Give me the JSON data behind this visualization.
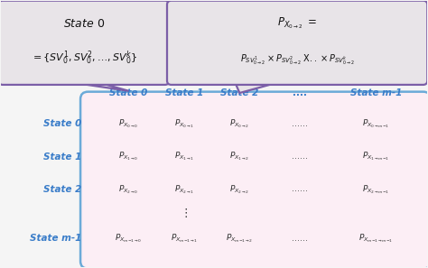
{
  "bg_color": "#f5f5f5",
  "matrix_bg": "#fceef5",
  "matrix_border": "#6baad8",
  "bubble_bg": "#e8e4e8",
  "bubble_border": "#7b5ea7",
  "col_header_color": "#3a7dc9",
  "row_header_color": "#3a7dc9",
  "matrix_text_color": "#333333",
  "dots_color": "#333333",
  "figsize": [
    4.74,
    2.97
  ],
  "dpi": 100,
  "col_headers": [
    "State 0",
    "State 1",
    "State 2",
    "....",
    "State m-1"
  ],
  "row_headers": [
    "State 0",
    "State 1",
    "State 2",
    "State m-1"
  ],
  "xlim": [
    0,
    10
  ],
  "ylim": [
    0,
    6.5
  ]
}
